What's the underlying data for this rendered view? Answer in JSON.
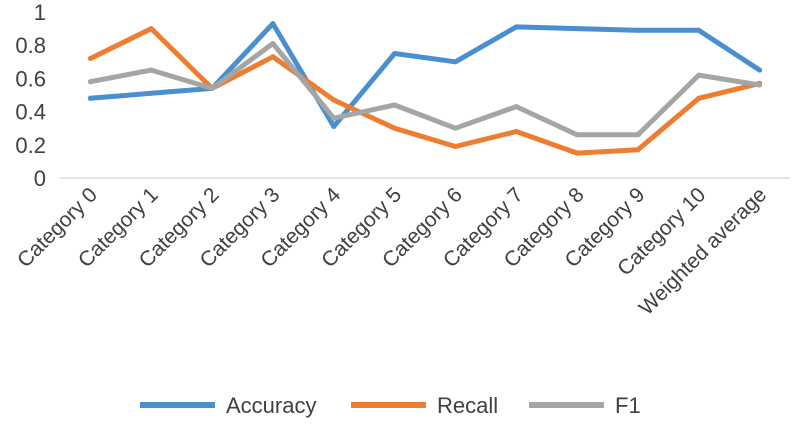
{
  "chart_data": {
    "type": "line",
    "categories": [
      "Category 0",
      "Category 1",
      "Category 2",
      "Category 3",
      "Category 4",
      "Category 5",
      "Category 6",
      "Category 7",
      "Category 8",
      "Category 9",
      "Category 10",
      "Weighted average"
    ],
    "series": [
      {
        "name": "Accuracy",
        "color": "#4a8fcf",
        "values": [
          0.48,
          0.51,
          0.54,
          0.93,
          0.31,
          0.75,
          0.7,
          0.91,
          0.9,
          0.89,
          0.89,
          0.65
        ]
      },
      {
        "name": "Recall",
        "color": "#ed7d31",
        "values": [
          0.72,
          0.9,
          0.54,
          0.73,
          0.47,
          0.3,
          0.19,
          0.28,
          0.15,
          0.17,
          0.48,
          0.57
        ]
      },
      {
        "name": "F1",
        "color": "#a5a5a5",
        "values": [
          0.58,
          0.65,
          0.54,
          0.81,
          0.36,
          0.44,
          0.3,
          0.43,
          0.26,
          0.26,
          0.62,
          0.56
        ]
      }
    ],
    "y_ticks": [
      "0",
      "0.2",
      "0.4",
      "0.6",
      "0.8",
      "1"
    ],
    "ylim": [
      0,
      1
    ],
    "grid": false,
    "legend_position": "bottom"
  }
}
